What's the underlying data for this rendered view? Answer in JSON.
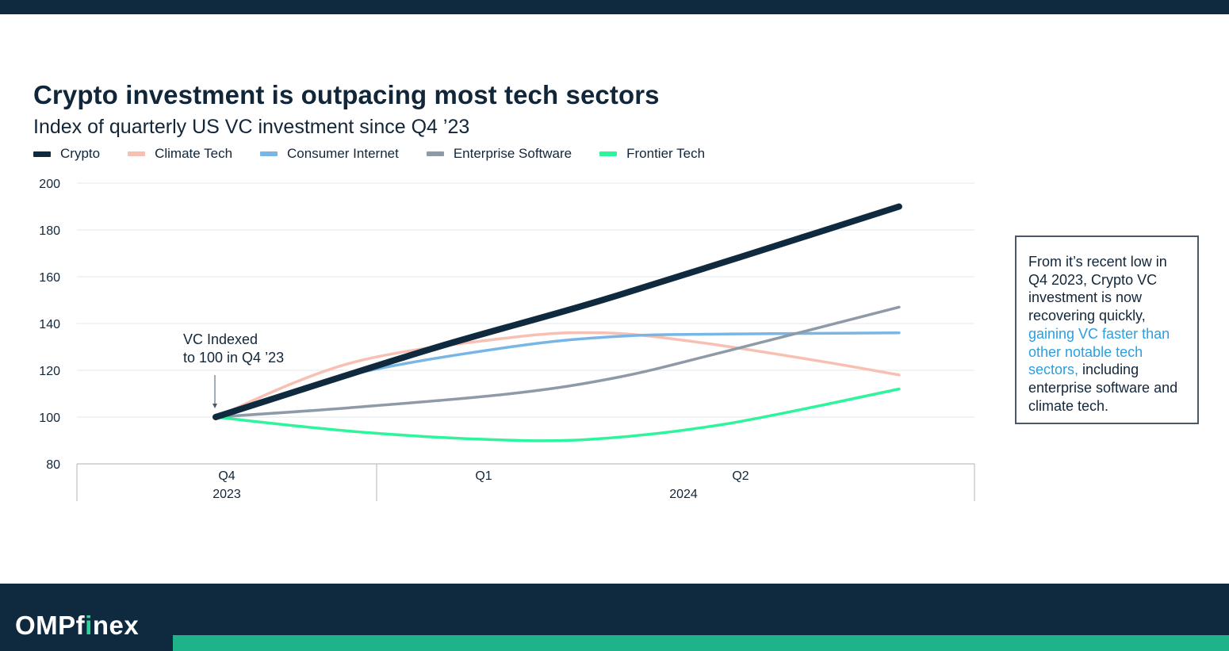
{
  "title": "Crypto investment is outpacing most tech sectors",
  "subtitle": "Index of quarterly US VC investment since Q4 ’23",
  "callout": {
    "part1": "From it’s recent low in Q4 2023, Crypto VC investment is now recovering quickly, ",
    "highlight": "gaining VC faster than other notable tech sectors,",
    "part2": " including enterprise software and climate tech."
  },
  "brand": {
    "pre": "OMPf",
    "accent": "i",
    "post": "nex"
  },
  "colors": {
    "dark": "#0f2a3f",
    "stripe": "#1fb38a",
    "highlight": "#2b9fe0"
  },
  "chart_data": {
    "type": "line",
    "title": "Crypto investment is outpacing most tech sectors",
    "subtitle": "Index of quarterly US VC investment since Q4 ’23",
    "ylim": [
      80,
      200
    ],
    "yticks": [
      80,
      100,
      120,
      140,
      160,
      180,
      200
    ],
    "grid": true,
    "legend_position": "top-left",
    "x_categories": [
      {
        "quarter": "Q4",
        "year": "2023"
      },
      {
        "quarter": "Q1",
        "year": "2024"
      },
      {
        "quarter": "Q2",
        "year": "2024"
      }
    ],
    "year_groups": [
      "2023",
      "2024"
    ],
    "series": [
      {
        "name": "Climate Tech",
        "color": "#f8c0b2",
        "width": 3.5,
        "points": [
          [
            0,
            100
          ],
          [
            0.5,
            123
          ],
          [
            1.1,
            134
          ],
          [
            1.45,
            136
          ],
          [
            1.8,
            132
          ],
          [
            2.25,
            124
          ],
          [
            2.55,
            118
          ]
        ]
      },
      {
        "name": "Consumer Internet",
        "color": "#78b6e6",
        "width": 3.5,
        "points": [
          [
            0,
            100
          ],
          [
            0.5,
            118
          ],
          [
            1.1,
            130
          ],
          [
            1.5,
            134.5
          ],
          [
            1.9,
            135.5
          ],
          [
            2.55,
            136
          ]
        ]
      },
      {
        "name": "Enterprise Software",
        "color": "#8e9aa7",
        "width": 3.5,
        "points": [
          [
            0,
            100
          ],
          [
            0.5,
            104
          ],
          [
            1.1,
            110
          ],
          [
            1.5,
            117
          ],
          [
            1.9,
            128
          ],
          [
            2.55,
            147
          ]
        ]
      },
      {
        "name": "Frontier Tech",
        "color": "#2df59c",
        "width": 3.5,
        "points": [
          [
            0,
            100
          ],
          [
            0.5,
            94
          ],
          [
            1.0,
            90.5
          ],
          [
            1.4,
            90.5
          ],
          [
            1.9,
            97
          ],
          [
            2.55,
            112
          ]
        ]
      },
      {
        "name": "Crypto",
        "color": "#0f2a3f",
        "width": 8,
        "points": [
          [
            0,
            100
          ],
          [
            0.8,
            129
          ],
          [
            1.5,
            152
          ],
          [
            2.55,
            190
          ]
        ]
      }
    ],
    "legend_order": [
      "Crypto",
      "Climate Tech",
      "Consumer Internet",
      "Enterprise Software",
      "Frontier Tech"
    ],
    "annotation": {
      "lines": [
        "VC Indexed",
        "to 100 in Q4 ’23"
      ],
      "x": 0,
      "y": 100
    }
  }
}
